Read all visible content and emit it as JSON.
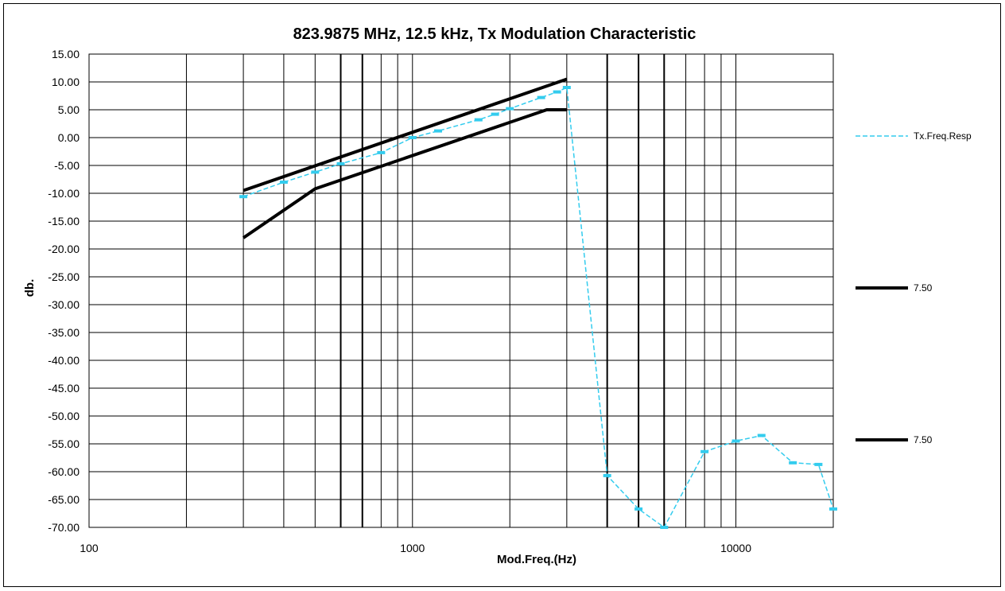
{
  "chart_data": {
    "type": "line",
    "title": "823.9875 MHz, 12.5 kHz, Tx Modulation Characteristic",
    "xlabel": "Mod.Freq.(Hz)",
    "ylabel": "db.",
    "x_scale": "log",
    "xlim": [
      100,
      20000
    ],
    "ylim": [
      -70,
      15
    ],
    "x_ticks": [
      100,
      1000,
      10000
    ],
    "y_ticks": [
      15,
      10,
      5,
      0,
      -5,
      -10,
      -15,
      -20,
      -25,
      -30,
      -35,
      -40,
      -45,
      -50,
      -55,
      -60,
      -65,
      -70
    ],
    "y_tick_labels": [
      "15.00",
      "10.00",
      "5.00",
      "0.00",
      "-5.00",
      "-10.00",
      "-15.00",
      "-20.00",
      "-25.00",
      "-30.00",
      "-35.00",
      "-40.00",
      "-45.00",
      "-50.00",
      "-55.00",
      "-60.00",
      "-65.00",
      "-70.00"
    ],
    "x_tick_labels": [
      "100",
      "1000",
      "10000"
    ],
    "grid": true,
    "legend_position": "right",
    "series": [
      {
        "name": "Tx.Freq.Resp",
        "color": "#33ccee",
        "style": "dashed",
        "marker": "dash",
        "x": [
          300,
          400,
          500,
          600,
          800,
          1000,
          1200,
          1600,
          1800,
          2000,
          2500,
          2800,
          3000,
          4000,
          5000,
          6000,
          8000,
          10000,
          12000,
          15000,
          18000,
          20000
        ],
        "y": [
          -10.6,
          -8.0,
          -6.2,
          -4.7,
          -2.7,
          0.0,
          1.2,
          3.2,
          4.2,
          5.2,
          7.2,
          8.2,
          9.0,
          -60.7,
          -66.7,
          -70.0,
          -56.4,
          -54.5,
          -53.5,
          -58.4,
          -58.7,
          -66.7
        ]
      },
      {
        "name": "7.50",
        "color": "#000000",
        "style": "solid",
        "x": [
          300,
          3000
        ],
        "y": [
          -9.5,
          10.5
        ]
      },
      {
        "name": "7.50",
        "color": "#000000",
        "style": "solid",
        "x": [
          300,
          500,
          2600,
          3000
        ],
        "y": [
          -18.0,
          -9.2,
          5.0,
          5.0
        ]
      }
    ]
  }
}
